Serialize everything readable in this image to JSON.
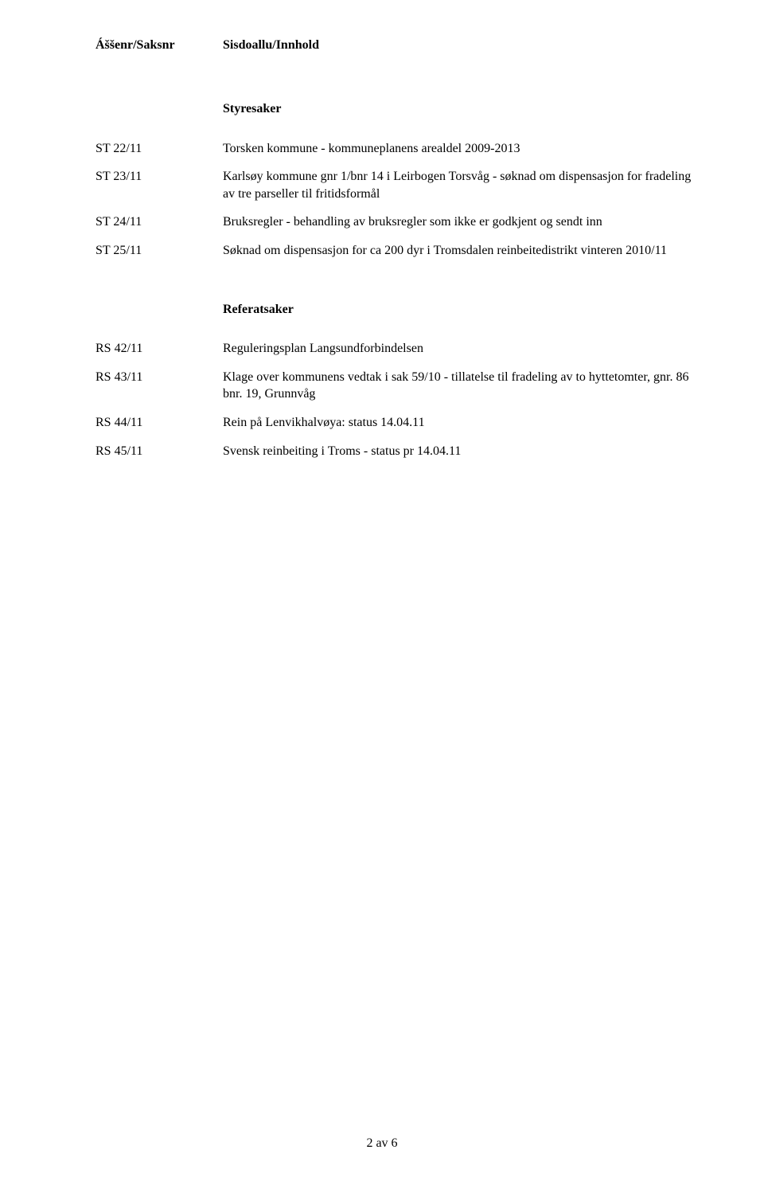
{
  "header": {
    "left": "Áššenr/Saksnr",
    "right": "Sisdoallu/Innhold"
  },
  "sections": [
    {
      "title": "Styresaker",
      "items": [
        {
          "id": "ST 22/11",
          "text": "Torsken kommune - kommuneplanens arealdel 2009-2013"
        },
        {
          "id": "ST 23/11",
          "text": "Karlsøy kommune gnr 1/bnr 14 i Leirbogen Torsvåg - søknad om dispensasjon for fradeling av tre parseller til fritidsformål"
        },
        {
          "id": "ST 24/11",
          "text": "Bruksregler - behandling av bruksregler som ikke er godkjent og sendt inn"
        },
        {
          "id": "ST 25/11",
          "text": "Søknad om dispensasjon for ca 200 dyr i Tromsdalen reinbeitedistrikt vinteren 2010/11"
        }
      ]
    },
    {
      "title": "Referatsaker",
      "items": [
        {
          "id": "RS 42/11",
          "text": "Reguleringsplan Langsundforbindelsen"
        },
        {
          "id": "RS 43/11",
          "text": "Klage over kommunens vedtak i sak 59/10 - tillatelse til fradeling av to hyttetomter, gnr. 86 bnr. 19, Grunnvåg"
        },
        {
          "id": "RS 44/11",
          "text": "Rein på Lenvikhalvøya: status 14.04.11"
        },
        {
          "id": "RS 45/11",
          "text": "Svensk reinbeiting i Troms - status pr 14.04.11"
        }
      ]
    }
  ],
  "pageNumber": "2 av 6"
}
